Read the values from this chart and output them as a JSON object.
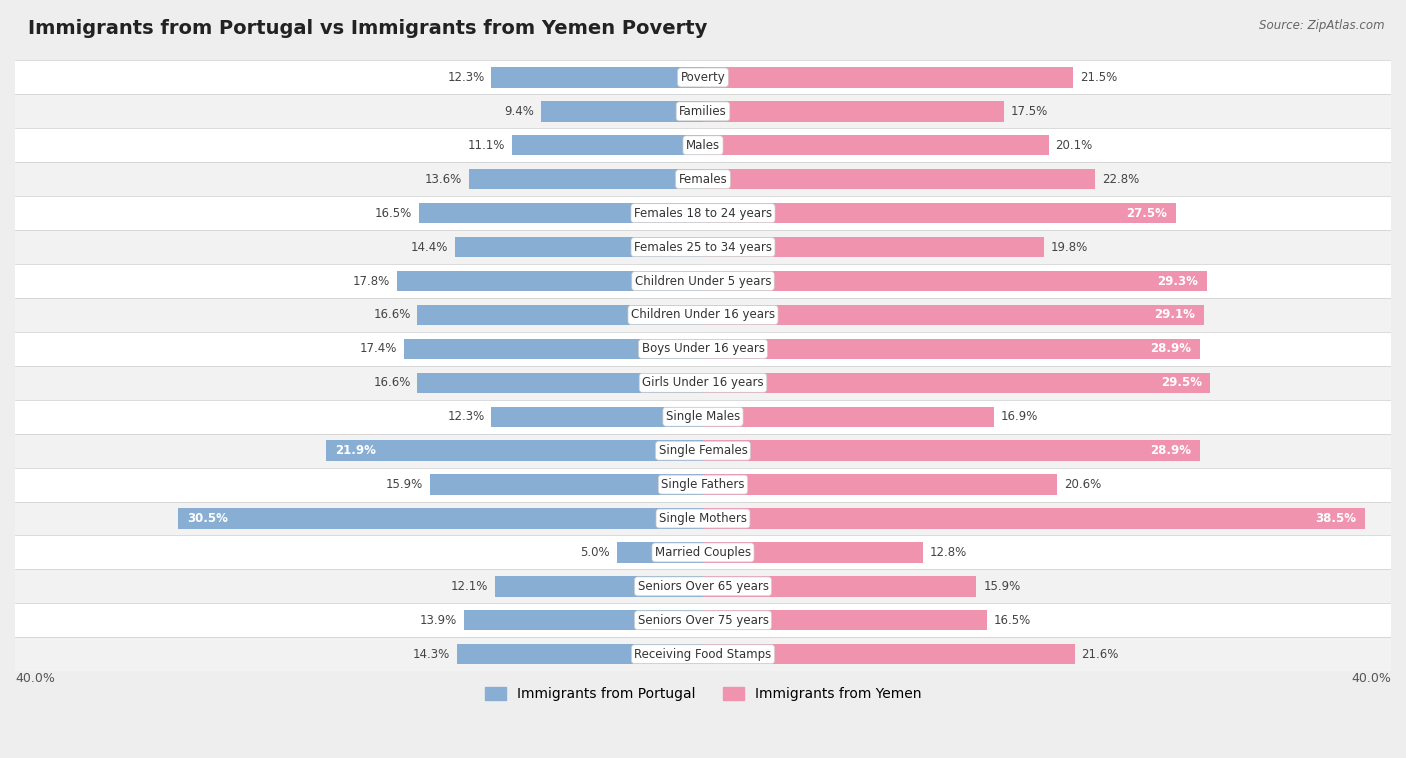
{
  "title": "Immigrants from Portugal vs Immigrants from Yemen Poverty",
  "source": "Source: ZipAtlas.com",
  "categories": [
    "Poverty",
    "Families",
    "Males",
    "Females",
    "Females 18 to 24 years",
    "Females 25 to 34 years",
    "Children Under 5 years",
    "Children Under 16 years",
    "Boys Under 16 years",
    "Girls Under 16 years",
    "Single Males",
    "Single Females",
    "Single Fathers",
    "Single Mothers",
    "Married Couples",
    "Seniors Over 65 years",
    "Seniors Over 75 years",
    "Receiving Food Stamps"
  ],
  "portugal_values": [
    12.3,
    9.4,
    11.1,
    13.6,
    16.5,
    14.4,
    17.8,
    16.6,
    17.4,
    16.6,
    12.3,
    21.9,
    15.9,
    30.5,
    5.0,
    12.1,
    13.9,
    14.3
  ],
  "yemen_values": [
    21.5,
    17.5,
    20.1,
    22.8,
    27.5,
    19.8,
    29.3,
    29.1,
    28.9,
    29.5,
    16.9,
    28.9,
    20.6,
    38.5,
    12.8,
    15.9,
    16.5,
    21.6
  ],
  "portugal_color": "#88aed3",
  "yemen_color": "#f093af",
  "bar_height": 0.6,
  "max_val": 40.0,
  "background_color": "#eeeeee",
  "row_bg_even": "#ffffff",
  "row_bg_odd": "#f2f2f2",
  "legend_portugal": "Immigrants from Portugal",
  "legend_yemen": "Immigrants from Yemen",
  "axis_label": "40.0%",
  "title_fontsize": 14,
  "label_fontsize": 8.5,
  "cat_fontsize": 8.5
}
